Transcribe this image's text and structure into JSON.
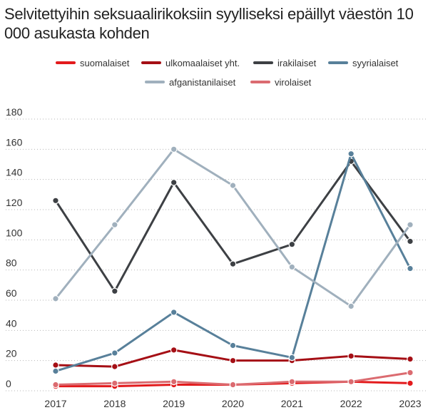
{
  "chart_data": {
    "type": "line",
    "title": "Selvitettyihin seksuaalirikoksiin syylliseksi epäillyt väestön 10 000 asukasta kohden",
    "xlabel": "",
    "ylabel": "",
    "x": [
      "2017",
      "2018",
      "2019",
      "2020",
      "2021",
      "2022",
      "2023"
    ],
    "ylim": [
      0,
      180
    ],
    "yticks": [
      0,
      20,
      40,
      60,
      80,
      100,
      120,
      140,
      160,
      180
    ],
    "grid": "horizontal",
    "legend_position": "top",
    "series": [
      {
        "name": "suomalaiset",
        "color": "#e31a1c",
        "values": [
          3,
          3,
          4,
          4,
          5,
          6,
          5
        ]
      },
      {
        "name": "ulkomaalaiset yht.",
        "color": "#a50f15",
        "values": [
          17,
          16,
          27,
          20,
          20,
          23,
          21
        ]
      },
      {
        "name": "irakilaiset",
        "color": "#3d4044",
        "values": [
          126,
          66,
          138,
          84,
          97,
          152,
          99
        ]
      },
      {
        "name": "syyrialaiset",
        "color": "#58809a",
        "values": [
          13,
          25,
          52,
          30,
          22,
          157,
          81
        ]
      },
      {
        "name": "afganistanilaiset",
        "color": "#a0b0bd",
        "values": [
          61,
          110,
          160,
          136,
          82,
          56,
          110
        ]
      },
      {
        "name": "virolaiset",
        "color": "#db6b70",
        "values": [
          4,
          5,
          6,
          4,
          6,
          6,
          12
        ]
      }
    ]
  }
}
